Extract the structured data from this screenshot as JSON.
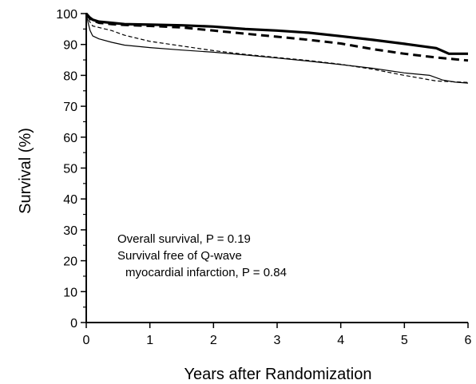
{
  "chart_data": {
    "type": "line",
    "title": "",
    "xlabel": "Years after Randomization",
    "ylabel": "Survival (%)",
    "xlim": [
      0,
      6
    ],
    "ylim": [
      0,
      100
    ],
    "x_ticks": [
      0,
      1,
      2,
      3,
      4,
      5,
      6
    ],
    "y_ticks": [
      0,
      10,
      20,
      30,
      40,
      50,
      60,
      70,
      80,
      90,
      100
    ],
    "y_minor_ticks": [
      5,
      15,
      25,
      35,
      45,
      55,
      65,
      75,
      85,
      95
    ],
    "grid": false,
    "legend": "none",
    "annotations": [
      "Overall survival, P = 0.19",
      "Survival free of Q-wave",
      "myocardial infarction, P = 0.84"
    ],
    "series": [
      {
        "style": "thick-solid",
        "color": "#000000",
        "x": [
          0,
          0.05,
          0.1,
          0.2,
          0.4,
          0.6,
          1.0,
          1.5,
          2.0,
          2.5,
          3.0,
          3.5,
          4.0,
          4.5,
          5.0,
          5.5,
          5.7,
          6.0
        ],
        "y": [
          100,
          98.8,
          98.0,
          97.4,
          97.0,
          96.6,
          96.4,
          96.2,
          95.8,
          95.0,
          94.5,
          93.8,
          92.7,
          91.5,
          90.2,
          88.8,
          87.0,
          87.0
        ]
      },
      {
        "style": "thick-dashed",
        "color": "#000000",
        "x": [
          0,
          0.05,
          0.1,
          0.2,
          0.4,
          0.6,
          1.0,
          1.5,
          2.0,
          2.5,
          3.0,
          3.5,
          4.0,
          4.5,
          5.0,
          5.5,
          6.0
        ],
        "y": [
          100,
          98.5,
          97.8,
          97.0,
          96.6,
          96.3,
          96.0,
          95.5,
          94.5,
          93.5,
          92.5,
          91.5,
          90.3,
          88.5,
          87.0,
          85.8,
          84.8
        ]
      },
      {
        "style": "thin-solid",
        "color": "#000000",
        "x": [
          0,
          0.03,
          0.06,
          0.1,
          0.2,
          0.4,
          0.6,
          1.0,
          1.5,
          2.0,
          2.5,
          3.0,
          3.5,
          4.0,
          4.5,
          5.0,
          5.4,
          5.6,
          5.8,
          6.0
        ],
        "y": [
          100,
          97.0,
          94.5,
          92.8,
          91.8,
          90.7,
          89.8,
          89.0,
          88.2,
          87.5,
          86.6,
          85.6,
          84.6,
          83.5,
          82.3,
          80.8,
          80.0,
          78.5,
          77.8,
          77.5
        ]
      },
      {
        "style": "thin-dashed",
        "color": "#000000",
        "x": [
          0,
          0.05,
          0.1,
          0.2,
          0.4,
          0.6,
          1.0,
          1.5,
          2.0,
          2.5,
          3.0,
          3.5,
          4.0,
          4.5,
          5.0,
          5.5,
          6.0
        ],
        "y": [
          100,
          97.5,
          96.0,
          95.5,
          94.5,
          93.0,
          91.0,
          89.5,
          88.0,
          86.8,
          85.8,
          84.8,
          83.6,
          82.0,
          80.0,
          78.2,
          77.7
        ]
      }
    ]
  }
}
